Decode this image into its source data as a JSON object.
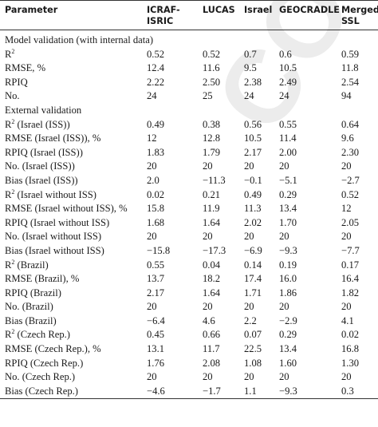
{
  "watermark": "CORRECTED",
  "header": {
    "parameter": "Parameter",
    "icraf": "ICRAF-ISRIC",
    "lucas": "LUCAS",
    "israel": "Israel",
    "geocradle": "GEOCRADLE",
    "merged": "Merged SSL"
  },
  "rows": [
    {
      "p": "Model validation (with internal data)",
      "v": [
        "",
        "",
        "",
        "",
        ""
      ]
    },
    {
      "p": "R2",
      "v": [
        "0.52",
        "0.52",
        "0.7",
        "0.6",
        "0.59"
      ]
    },
    {
      "p": "RMSE, %",
      "v": [
        "12.4",
        "11.6",
        "9.5",
        "10.5",
        "11.8"
      ]
    },
    {
      "p": "RPIQ",
      "v": [
        "2.22",
        "2.50",
        "2.38",
        "2.49",
        "2.54"
      ]
    },
    {
      "p": "No.",
      "v": [
        "24",
        "25",
        "24",
        "24",
        "94"
      ]
    },
    {
      "p": "External validation",
      "v": [
        "",
        "",
        "",
        "",
        ""
      ]
    },
    {
      "p": "R2 (Israel (ISS))",
      "v": [
        "0.49",
        "0.38",
        "0.56",
        "0.55",
        "0.64"
      ]
    },
    {
      "p": "RMSE (Israel (ISS)), %",
      "v": [
        "12",
        "12.8",
        "10.5",
        "11.4",
        "9.6"
      ]
    },
    {
      "p": "RPIQ (Israel (ISS))",
      "v": [
        "1.83",
        "1.79",
        "2.17",
        "2.00",
        "2.30"
      ]
    },
    {
      "p": "No. (Israel (ISS))",
      "v": [
        "20",
        "20",
        "20",
        "20",
        "20"
      ]
    },
    {
      "p": "Bias (Israel (ISS))",
      "v": [
        "2.0",
        "−11.3",
        "−0.1",
        "−5.1",
        "−2.7"
      ]
    },
    {
      "p": "R2 (Israel without ISS)",
      "v": [
        "0.02",
        "0.21",
        "0.49",
        "0.29",
        "0.52"
      ]
    },
    {
      "p": "RMSE (Israel without ISS), %",
      "v": [
        "15.8",
        "11.9",
        "11.3",
        "13.4",
        "12"
      ]
    },
    {
      "p": "RPIQ (Israel without ISS)",
      "v": [
        "1.68",
        "1.64",
        "2.02",
        "1.70",
        "2.05"
      ]
    },
    {
      "p": "No. (Israel without ISS)",
      "v": [
        "20",
        "20",
        "20",
        "20",
        "20"
      ]
    },
    {
      "p": "Bias (Israel without ISS)",
      "v": [
        "−15.8",
        "−17.3",
        "−6.9",
        "−9.3",
        "−7.7"
      ]
    },
    {
      "p": "R2 (Brazil)",
      "v": [
        "0.55",
        "0.04",
        "0.14",
        "0.19",
        "0.17"
      ]
    },
    {
      "p": "RMSE (Brazil), %",
      "v": [
        "13.7",
        "18.2",
        "17.4",
        "16.0",
        "16.4"
      ]
    },
    {
      "p": "RPIQ (Brazil)",
      "v": [
        "2.17",
        "1.64",
        "1.71",
        "1.86",
        "1.82"
      ]
    },
    {
      "p": "No. (Brazil)",
      "v": [
        "20",
        "20",
        "20",
        "20",
        "20"
      ]
    },
    {
      "p": "Bias (Brazil)",
      "v": [
        "−6.4",
        "4.6",
        "2.2",
        "−2.9",
        "4.1"
      ]
    },
    {
      "p": "R2 (Czech Rep.)",
      "v": [
        "0.45",
        "0.66",
        "0.07",
        "0.29",
        "0.02"
      ]
    },
    {
      "p": "RMSE (Czech Rep.), %",
      "v": [
        "13.1",
        "11.7",
        "22.5",
        "13.4",
        "16.8"
      ]
    },
    {
      "p": "RPIQ (Czech Rep.)",
      "v": [
        "1.76",
        "2.08",
        "1.08",
        "1.60",
        "1.30"
      ]
    },
    {
      "p": "No. (Czech Rep.)",
      "v": [
        "20",
        "20",
        "20",
        "20",
        "20"
      ]
    },
    {
      "p": "Bias (Czech Rep.)",
      "v": [
        "−4.6",
        "−1.7",
        "1.1",
        "−9.3",
        "0.3"
      ]
    }
  ]
}
